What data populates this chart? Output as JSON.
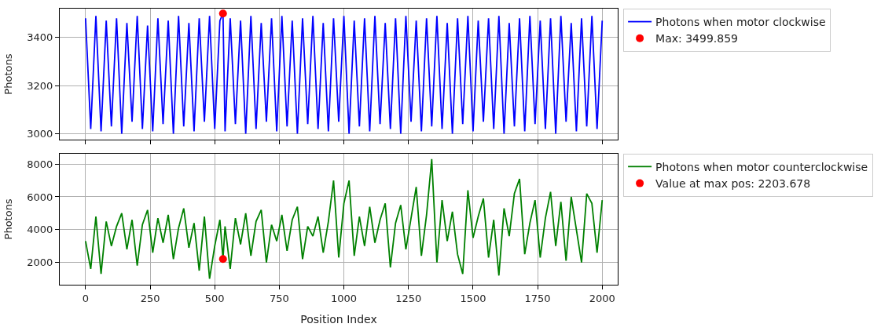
{
  "chart_data": [
    {
      "type": "line",
      "ylabel": "Photons",
      "xlim": [
        -100,
        2060
      ],
      "xticks": [
        0,
        250,
        500,
        750,
        1000,
        1250,
        1500,
        1750,
        2000
      ],
      "ylim": [
        2975,
        3520
      ],
      "yticks": [
        3000,
        3200,
        3400
      ],
      "grid": true,
      "legend": "right",
      "tick_labels": "y",
      "series": [
        {
          "name": "Photons when motor clockwise",
          "color": "#0000ff",
          "marker": "none",
          "x": [
            0,
            20,
            40,
            60,
            80,
            100,
            120,
            140,
            160,
            180,
            200,
            220,
            240,
            260,
            280,
            300,
            320,
            340,
            360,
            380,
            400,
            420,
            440,
            460,
            480,
            500,
            520,
            532,
            540,
            560,
            580,
            600,
            620,
            640,
            660,
            680,
            700,
            720,
            740,
            760,
            780,
            800,
            820,
            840,
            860,
            880,
            900,
            920,
            940,
            960,
            980,
            1000,
            1020,
            1040,
            1060,
            1080,
            1100,
            1120,
            1140,
            1160,
            1180,
            1200,
            1220,
            1240,
            1260,
            1280,
            1300,
            1320,
            1340,
            1360,
            1380,
            1400,
            1420,
            1440,
            1460,
            1480,
            1500,
            1520,
            1540,
            1560,
            1580,
            1600,
            1620,
            1640,
            1660,
            1680,
            1700,
            1720,
            1740,
            1760,
            1780,
            1800,
            1820,
            1840,
            1860,
            1880,
            1900,
            1920,
            1940,
            1960,
            1980,
            2000
          ],
          "values": [
            3480,
            3020,
            3490,
            3010,
            3470,
            3030,
            3480,
            3000,
            3460,
            3050,
            3490,
            3020,
            3450,
            3010,
            3480,
            3040,
            3470,
            3000,
            3490,
            3030,
            3460,
            3010,
            3480,
            3050,
            3490,
            3020,
            3470,
            3499.859,
            3010,
            3480,
            3040,
            3470,
            3000,
            3490,
            3020,
            3460,
            3050,
            3480,
            3010,
            3490,
            3030,
            3470,
            3000,
            3480,
            3040,
            3490,
            3020,
            3460,
            3010,
            3480,
            3050,
            3490,
            3000,
            3470,
            3030,
            3480,
            3010,
            3490,
            3040,
            3460,
            3020,
            3480,
            3000,
            3490,
            3050,
            3470,
            3010,
            3480,
            3030,
            3490,
            3020,
            3460,
            3000,
            3480,
            3040,
            3490,
            3010,
            3470,
            3050,
            3480,
            3020,
            3490,
            3000,
            3460,
            3030,
            3480,
            3010,
            3490,
            3040,
            3470,
            3020,
            3480,
            3000,
            3490,
            3050,
            3460,
            3010,
            3480,
            3030,
            3490,
            3020,
            3470
          ]
        },
        {
          "name": "Max: 3499.859",
          "color": "#ff0000",
          "type": "scatter",
          "marker": "circle",
          "x": [
            532
          ],
          "values": [
            3499.859
          ]
        }
      ]
    },
    {
      "type": "line",
      "ylabel": "Photons",
      "xlabel": "Position Index",
      "xlim": [
        -100,
        2060
      ],
      "xticks": [
        0,
        250,
        500,
        750,
        1000,
        1250,
        1500,
        1750,
        2000
      ],
      "ylim": [
        640,
        8640
      ],
      "yticks": [
        2000,
        4000,
        6000,
        8000
      ],
      "grid": true,
      "legend": "right",
      "series": [
        {
          "name": "Photons when motor counterclockwise",
          "color": "#008000",
          "marker": "none",
          "x": [
            0,
            20,
            40,
            60,
            80,
            100,
            120,
            140,
            160,
            180,
            200,
            220,
            240,
            260,
            280,
            300,
            320,
            340,
            360,
            380,
            400,
            420,
            440,
            460,
            480,
            500,
            520,
            532,
            540,
            560,
            580,
            600,
            620,
            640,
            660,
            680,
            700,
            720,
            740,
            760,
            780,
            800,
            820,
            840,
            860,
            880,
            900,
            920,
            940,
            960,
            980,
            1000,
            1020,
            1040,
            1060,
            1080,
            1100,
            1120,
            1140,
            1160,
            1180,
            1200,
            1220,
            1240,
            1260,
            1280,
            1300,
            1320,
            1340,
            1360,
            1380,
            1400,
            1420,
            1440,
            1460,
            1480,
            1500,
            1520,
            1540,
            1560,
            1580,
            1600,
            1620,
            1640,
            1660,
            1680,
            1700,
            1720,
            1740,
            1760,
            1780,
            1800,
            1820,
            1840,
            1860,
            1880,
            1900,
            1920,
            1940,
            1960,
            1980,
            2000
          ],
          "values": [
            3300,
            1600,
            4800,
            1300,
            4500,
            3000,
            4200,
            5000,
            2800,
            4600,
            1800,
            4300,
            5200,
            2600,
            4700,
            3200,
            4900,
            2200,
            4100,
            5300,
            2900,
            4400,
            1500,
            4800,
            1000,
            3000,
            4600,
            2203.678,
            4200,
            1600,
            4700,
            3100,
            5000,
            2400,
            4500,
            5200,
            2000,
            4300,
            3300,
            4900,
            2700,
            4600,
            5400,
            2200,
            4200,
            3600,
            4800,
            2600,
            4500,
            7000,
            2300,
            5600,
            7000,
            2400,
            4800,
            3000,
            5400,
            3200,
            4600,
            5600,
            1700,
            4400,
            5500,
            2800,
            4700,
            6600,
            2400,
            4900,
            8300,
            2000,
            5800,
            3300,
            5100,
            2500,
            1300,
            6400,
            3500,
            4800,
            5900,
            2300,
            4600,
            1200,
            5300,
            3600,
            6200,
            7100,
            2500,
            4400,
            5800,
            2300,
            4700,
            6300,
            3000,
            5700,
            2100,
            6000,
            4000,
            2000,
            6200,
            5600,
            2600,
            5800
          ]
        },
        {
          "name": "Value at max pos: 2203.678",
          "color": "#ff0000",
          "type": "scatter",
          "marker": "circle",
          "x": [
            532
          ],
          "values": [
            2203.678
          ]
        }
      ]
    }
  ]
}
